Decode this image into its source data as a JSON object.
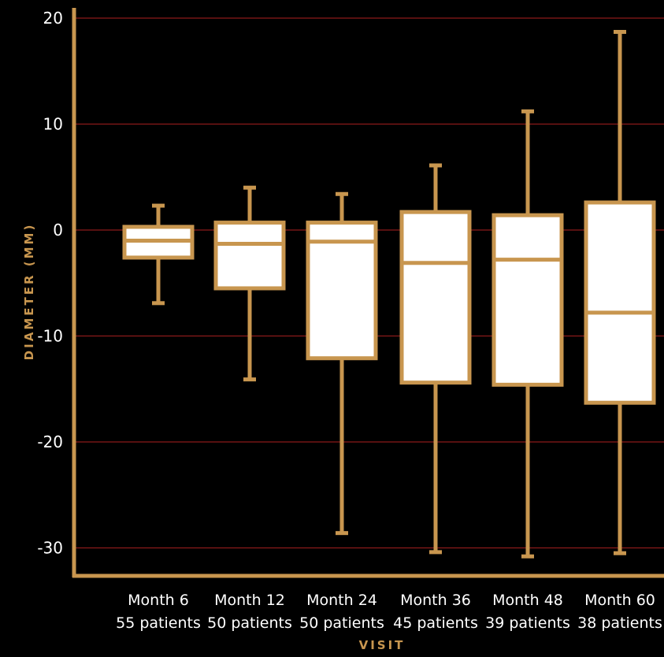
{
  "chart_data": {
    "type": "box",
    "xlabel": "VISIT",
    "ylabel": "DIAMETER (MM)",
    "ylim": [
      -33,
      21
    ],
    "yticks": [
      20,
      10,
      0,
      -10,
      -20,
      -30
    ],
    "grid": true,
    "categories": [
      {
        "label": "Month 6",
        "sublabel": "55 patients",
        "min": -6.9,
        "q1": -2.6,
        "median": -1.0,
        "q3": 0.3,
        "max": 2.3
      },
      {
        "label": "Month 12",
        "sublabel": "50 patients",
        "min": -14.1,
        "q1": -5.5,
        "median": -1.3,
        "q3": 0.7,
        "max": 4.0
      },
      {
        "label": "Month 24",
        "sublabel": "50 patients",
        "min": -28.6,
        "q1": -12.1,
        "median": -1.1,
        "q3": 0.7,
        "max": 3.4
      },
      {
        "label": "Month 36",
        "sublabel": "45 patients",
        "min": -30.4,
        "q1": -14.4,
        "median": -3.1,
        "q3": 1.7,
        "max": 6.1
      },
      {
        "label": "Month 48",
        "sublabel": "39 patients",
        "min": -30.8,
        "q1": -14.6,
        "median": -2.8,
        "q3": 1.4,
        "max": 11.2
      },
      {
        "label": "Month 60",
        "sublabel": "38 patients",
        "min": -30.5,
        "q1": -16.3,
        "median": -7.8,
        "q3": 2.6,
        "max": 18.7
      }
    ]
  },
  "colors": {
    "background": "#000000",
    "axis": "#c8964f",
    "grid": "#8b1a1a",
    "box_fill": "#ffffff",
    "text": "#ffffff"
  }
}
